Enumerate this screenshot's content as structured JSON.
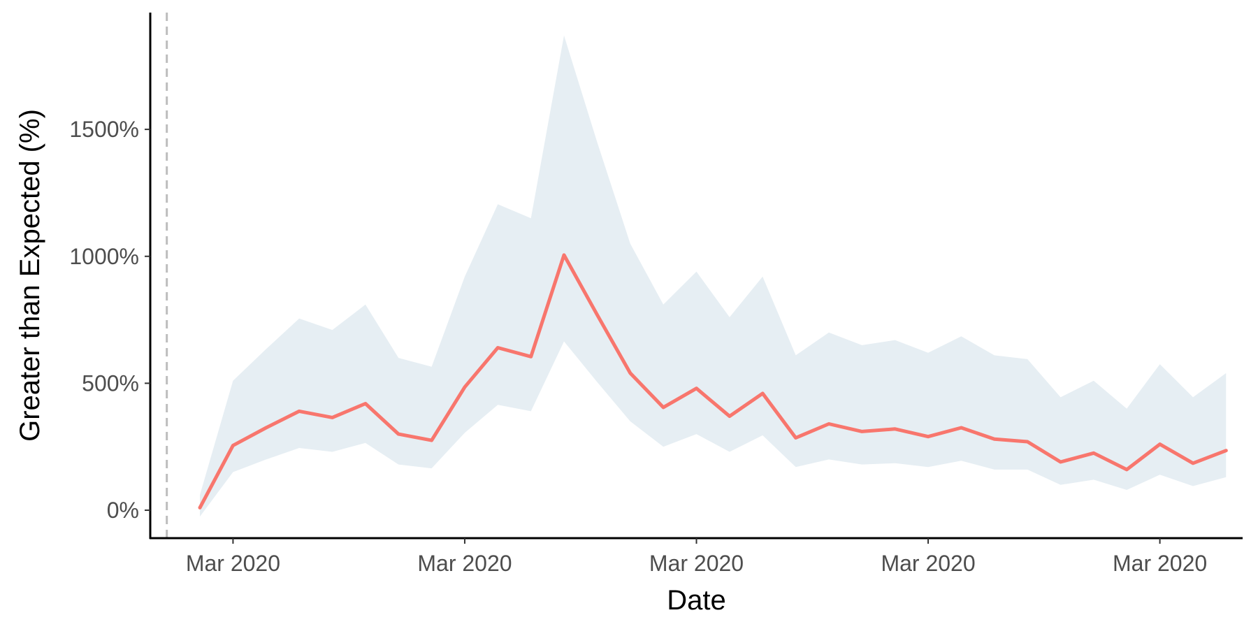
{
  "chart_data": {
    "type": "line",
    "title": "",
    "xlabel": "Date",
    "ylabel": "Greater than Expected (%)",
    "x_tick_labels": [
      "Mar 2020",
      "Mar 2020",
      "Mar 2020",
      "Mar 2020",
      "Mar 2020"
    ],
    "x_tick_positions": [
      1,
      8,
      15,
      22,
      29
    ],
    "y_ticks": [
      0,
      500,
      1000,
      1500
    ],
    "y_tick_labels": [
      "0%",
      "500%",
      "1000%",
      "1500%"
    ],
    "ylim": [
      -110,
      1960
    ],
    "xlim": [
      -1.5,
      31.5
    ],
    "reference_line": {
      "x": -1,
      "style": "dashed",
      "color": "#bdbdbd"
    },
    "grid": false,
    "legend": "none",
    "x": [
      0,
      1,
      2,
      3,
      4,
      5,
      6,
      7,
      8,
      9,
      10,
      11,
      12,
      13,
      14,
      15,
      16,
      17,
      18,
      19,
      20,
      21,
      22,
      23,
      24,
      25,
      26,
      27,
      28,
      29,
      30,
      31
    ],
    "series": [
      {
        "color": "#f8766d",
        "values": [
          10,
          255,
          325,
          390,
          365,
          420,
          300,
          275,
          485,
          640,
          605,
          1005,
          770,
          540,
          405,
          480,
          370,
          460,
          285,
          340,
          310,
          320,
          290,
          325,
          280,
          270,
          190,
          225,
          160,
          260,
          185,
          235
        ],
        "lower": [
          -25,
          150,
          200,
          245,
          230,
          265,
          180,
          165,
          305,
          415,
          390,
          665,
          505,
          350,
          250,
          300,
          230,
          295,
          170,
          200,
          180,
          185,
          170,
          195,
          160,
          160,
          100,
          120,
          80,
          140,
          95,
          130
        ],
        "upper": [
          60,
          510,
          635,
          755,
          710,
          810,
          600,
          565,
          920,
          1205,
          1150,
          1870,
          1450,
          1050,
          810,
          940,
          760,
          920,
          610,
          700,
          650,
          670,
          620,
          685,
          610,
          595,
          445,
          510,
          400,
          575,
          445,
          540
        ]
      }
    ],
    "colors": {
      "line": "#f8766d",
      "ribbon": "#e6eef3",
      "axis": "#000000",
      "tick_text": "#4d4d4d"
    }
  }
}
